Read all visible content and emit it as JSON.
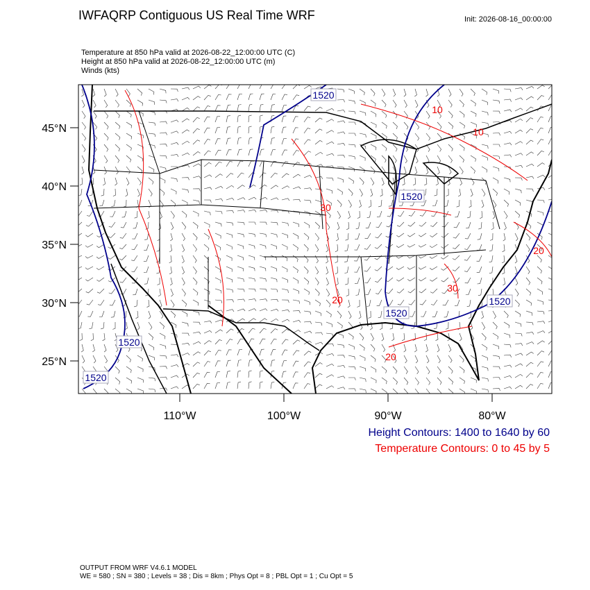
{
  "header": {
    "title": "IWFAQRP Contiguous US Real Time WRF",
    "init": "Init: 2026-08-16_00:00:00",
    "fields": [
      "Temperature at 850 hPa valid at 2026-08-22_12:00:00 UTC   (C)",
      "Height at 850 hPa valid at 2026-08-22_12:00:00 UTC   (m)",
      "Winds   (kts)"
    ]
  },
  "map": {
    "lat_labels": [
      "45°N",
      "40°N",
      "35°N",
      "30°N",
      "25°N"
    ],
    "lon_labels": [
      "110°W",
      "100°W",
      "90°W",
      "80°W"
    ],
    "height_labels": [
      "1520",
      "1520",
      "1520",
      "1520",
      "1520",
      "1520"
    ],
    "temp_labels": [
      "10",
      "10",
      "30",
      "20",
      "30",
      "20",
      "20"
    ]
  },
  "legend": {
    "height": "Height Contours: 1400 to 1640 by 60",
    "temperature": "Temperature Contours: 0 to 45 by 5"
  },
  "footer": [
    "OUTPUT FROM WRF V4.6.1 MODEL",
    "WE = 580 ; SN = 380 ; Levels = 38 ; Dis = 8km ; Phys Opt = 8 ; PBL Opt = 1 ; Cu Opt = 5"
  ]
}
